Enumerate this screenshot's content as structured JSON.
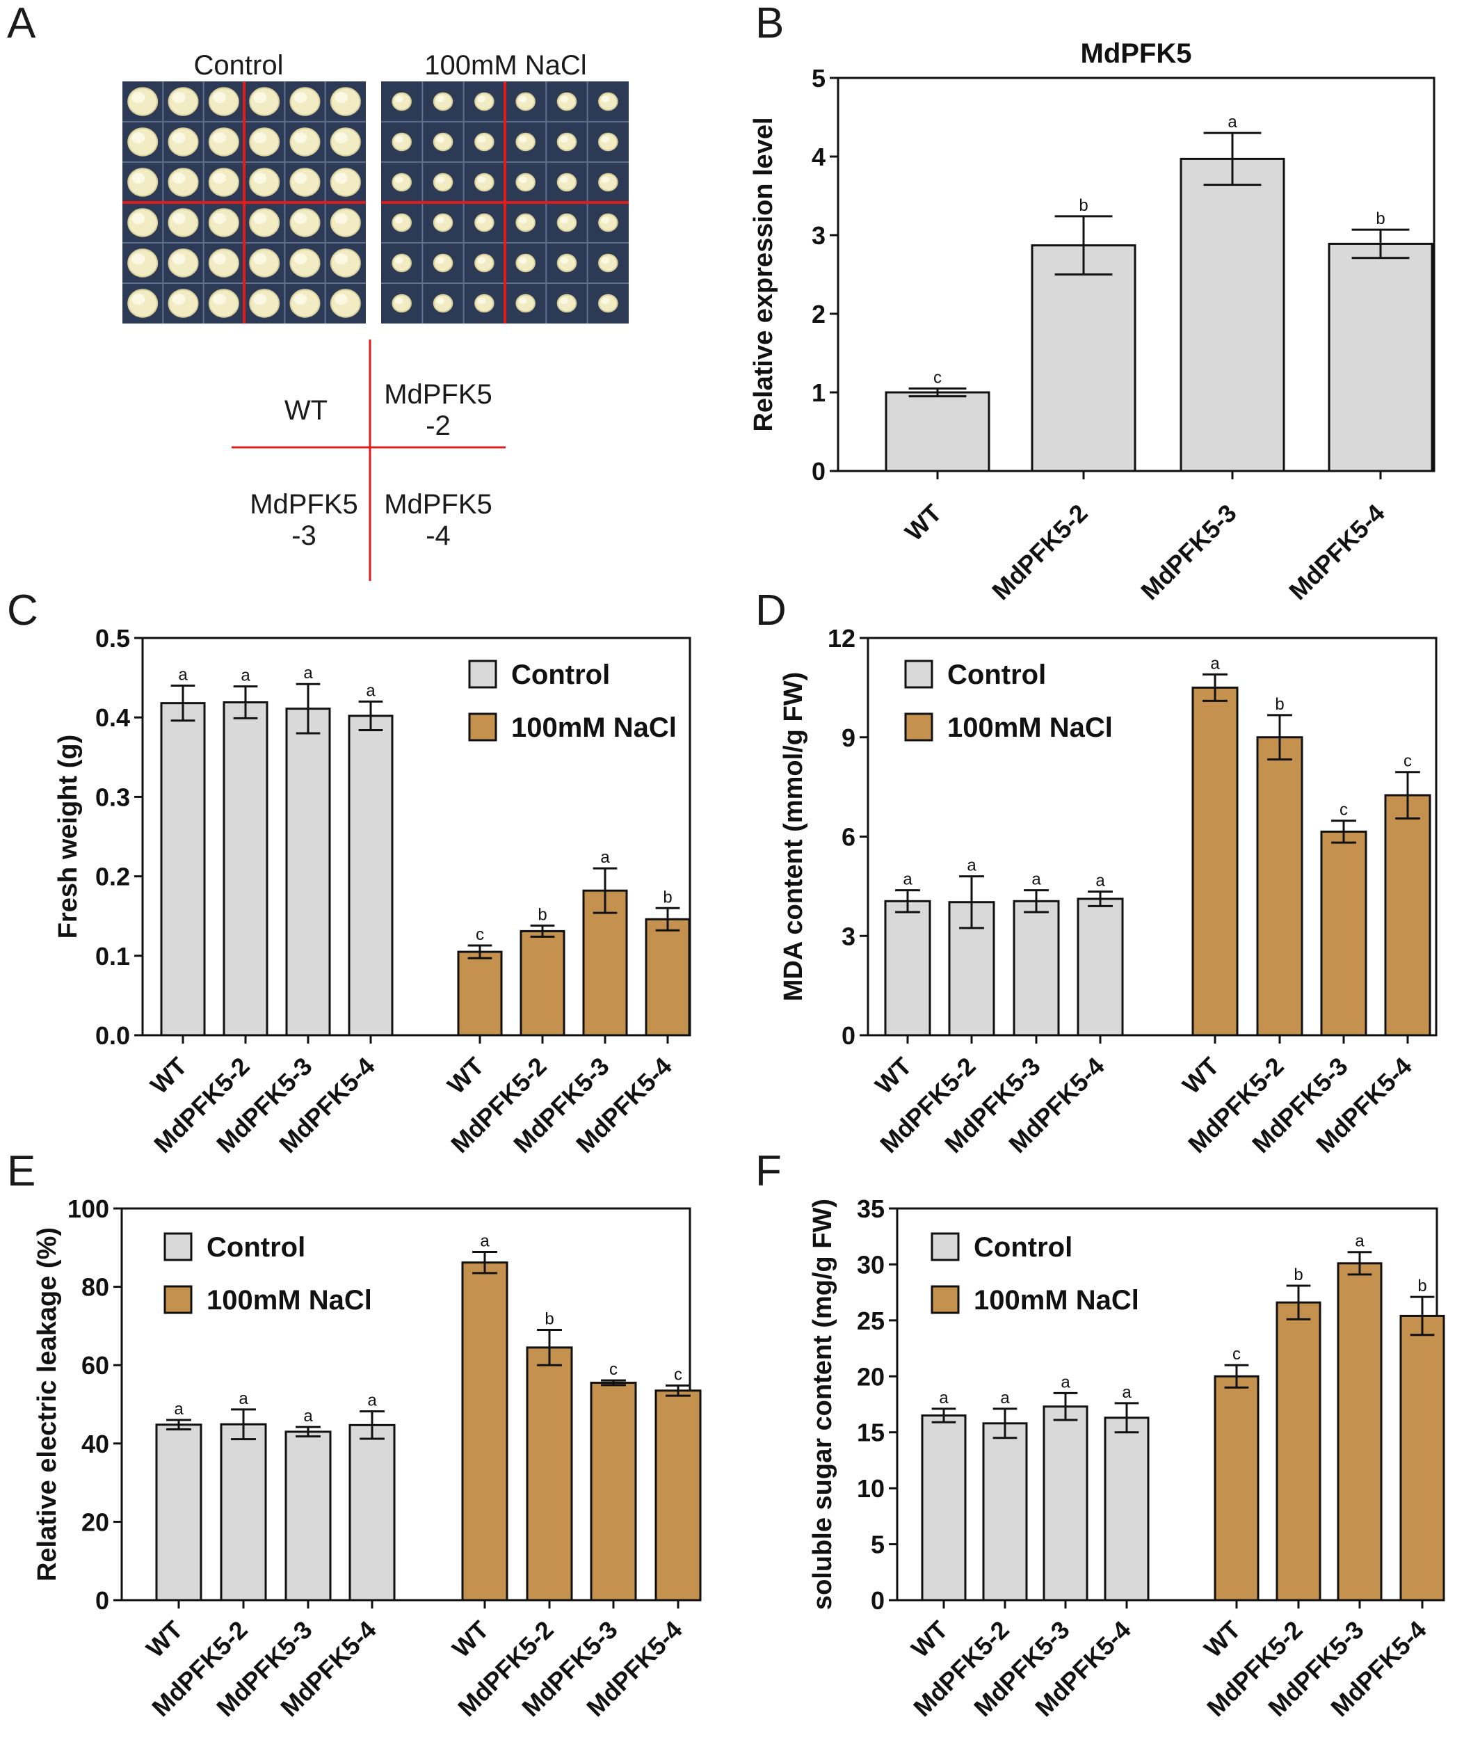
{
  "panels": {
    "a": {
      "letter": "A",
      "control_label": "Control",
      "nacl_label": "100mM NaCl",
      "layout": {
        "top_left": "WT",
        "top_right_line1": "MdPFK5",
        "top_right_line2": "-2",
        "bottom_left_line1": "MdPFK5",
        "bottom_left_line2": "-3",
        "bottom_right_line1": "MdPFK5",
        "bottom_right_line2": "-4"
      }
    },
    "b": {
      "letter": "B"
    },
    "c": {
      "letter": "C"
    },
    "d": {
      "letter": "D"
    },
    "e": {
      "letter": "E"
    },
    "f": {
      "letter": "F"
    }
  },
  "colors": {
    "control_fill": "#d9d9d9",
    "nacl_fill": "#c4914f",
    "axis": "#111111",
    "photo_grid_line": "#e01b1b",
    "photo_bg": "#2d3a55",
    "callus": "#f1ecc4"
  },
  "chart_data": [
    {
      "id": "B",
      "type": "bar",
      "title": "MdPFK5",
      "xlabel": "",
      "ylabel": "Relative expression level",
      "ylim": [
        0,
        5
      ],
      "yticks": [
        0,
        1,
        2,
        3,
        4,
        5
      ],
      "categories": [
        "WT",
        "MdPFK5-2",
        "MdPFK5-3",
        "MdPFK5-4"
      ],
      "series": [
        {
          "values": [
            1.0,
            2.87,
            3.97,
            2.89
          ],
          "errors": [
            0.05,
            0.37,
            0.33,
            0.18
          ],
          "letters": [
            "c",
            "b",
            "a",
            "b"
          ]
        }
      ]
    },
    {
      "id": "C",
      "type": "bar",
      "ylabel": "Fresh weight (g)",
      "ylim": [
        0,
        0.5
      ],
      "yticks": [
        "0.0",
        "0.1",
        "0.2",
        "0.3",
        "0.4",
        "0.5"
      ],
      "categories": [
        "WT",
        "MdPFK5-2",
        "MdPFK5-3",
        "MdPFK5-4"
      ],
      "legend_position": "top-right",
      "series": [
        {
          "name": "Control",
          "values": [
            0.418,
            0.419,
            0.411,
            0.402
          ],
          "errors": [
            0.022,
            0.02,
            0.031,
            0.018
          ],
          "letters": [
            "a",
            "a",
            "a",
            "a"
          ]
        },
        {
          "name": "100mM NaCl",
          "values": [
            0.105,
            0.131,
            0.182,
            0.146
          ],
          "errors": [
            0.008,
            0.007,
            0.028,
            0.014
          ],
          "letters": [
            "c",
            "b",
            "a",
            "b"
          ]
        }
      ]
    },
    {
      "id": "D",
      "type": "bar",
      "ylabel": "MDA content (mmol/g FW)",
      "ylim": [
        0,
        12
      ],
      "yticks": [
        "0",
        "3",
        "6",
        "9",
        "12"
      ],
      "categories": [
        "WT",
        "MdPFK5-2",
        "MdPFK5-3",
        "MdPFK5-4"
      ],
      "legend_position": "top-left",
      "series": [
        {
          "name": "Control",
          "values": [
            4.05,
            4.02,
            4.05,
            4.12
          ],
          "errors": [
            0.33,
            0.78,
            0.33,
            0.22
          ],
          "letters": [
            "a",
            "a",
            "a",
            "a"
          ]
        },
        {
          "name": "100mM NaCl",
          "values": [
            10.5,
            9.0,
            6.15,
            7.25
          ],
          "errors": [
            0.4,
            0.67,
            0.33,
            0.7
          ],
          "letters": [
            "a",
            "b",
            "c",
            "c"
          ]
        }
      ]
    },
    {
      "id": "E",
      "type": "bar",
      "ylabel": "Relative electric leakage (%)",
      "ylim": [
        0,
        100
      ],
      "yticks": [
        "0",
        "20",
        "40",
        "60",
        "80",
        "100"
      ],
      "categories": [
        "WT",
        "MdPFK5-2",
        "MdPFK5-3",
        "MdPFK5-4"
      ],
      "legend_position": "top-left",
      "series": [
        {
          "name": "Control",
          "values": [
            44.8,
            44.9,
            43.0,
            44.7
          ],
          "errors": [
            1.2,
            3.8,
            1.2,
            3.5
          ],
          "letters": [
            "a",
            "a",
            "a",
            "a"
          ]
        },
        {
          "name": "100mM NaCl",
          "values": [
            86.2,
            64.5,
            55.5,
            53.5
          ],
          "errors": [
            2.7,
            4.5,
            0.6,
            1.3
          ],
          "letters": [
            "a",
            "b",
            "c",
            "c"
          ]
        }
      ]
    },
    {
      "id": "F",
      "type": "bar",
      "ylabel": "soluble sugar content (mg/g FW)",
      "ylim": [
        0,
        35
      ],
      "yticks": [
        "0",
        "5",
        "10",
        "15",
        "20",
        "25",
        "30",
        "35"
      ],
      "categories": [
        "WT",
        "MdPFK5-2",
        "MdPFK5-3",
        "MdPFK5-4"
      ],
      "legend_position": "top-left",
      "series": [
        {
          "name": "Control",
          "values": [
            16.5,
            15.8,
            17.3,
            16.3
          ],
          "errors": [
            0.6,
            1.3,
            1.2,
            1.3
          ],
          "letters": [
            "a",
            "a",
            "a",
            "a"
          ]
        },
        {
          "name": "100mM NaCl",
          "values": [
            20.0,
            26.6,
            30.1,
            25.4
          ],
          "errors": [
            1.0,
            1.5,
            1.0,
            1.7
          ],
          "letters": [
            "c",
            "b",
            "a",
            "b"
          ]
        }
      ]
    }
  ]
}
